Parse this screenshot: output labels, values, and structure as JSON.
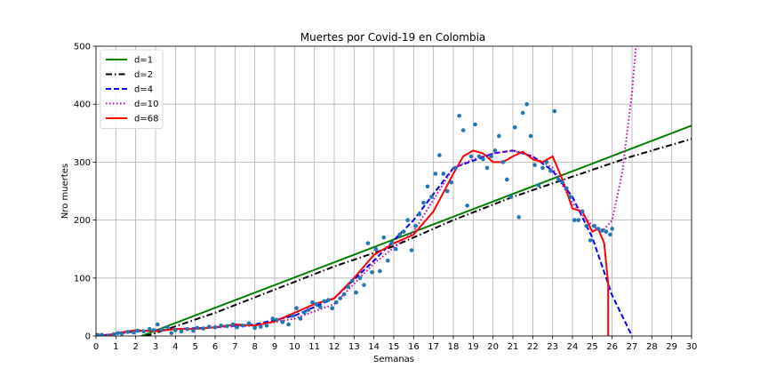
{
  "chart_data": {
    "type": "line",
    "title": "Muertes por Covid-19 en Colombia",
    "xlabel": "Semanas",
    "ylabel": "Nro muertes",
    "xlim": [
      0,
      30
    ],
    "ylim": [
      0,
      500
    ],
    "xticks": [
      0,
      1,
      2,
      3,
      4,
      5,
      6,
      7,
      8,
      9,
      10,
      11,
      12,
      13,
      14,
      15,
      16,
      17,
      18,
      19,
      20,
      21,
      22,
      23,
      24,
      25,
      26,
      27,
      28,
      29,
      30
    ],
    "yticks": [
      0,
      100,
      200,
      300,
      400,
      500
    ],
    "grid": true,
    "legend_position": "top-left",
    "scatter": {
      "color": "#1f77b4",
      "points": [
        [
          0.1,
          1
        ],
        [
          0.3,
          2
        ],
        [
          0.6,
          0
        ],
        [
          0.9,
          3
        ],
        [
          1.1,
          5
        ],
        [
          1.3,
          4
        ],
        [
          1.6,
          7
        ],
        [
          1.9,
          6
        ],
        [
          2.1,
          9
        ],
        [
          2.4,
          8
        ],
        [
          2.7,
          12
        ],
        [
          2.9,
          10
        ],
        [
          3.1,
          20
        ],
        [
          3.3,
          11
        ],
        [
          3.6,
          15
        ],
        [
          3.8,
          5
        ],
        [
          4.0,
          10
        ],
        [
          4.3,
          8
        ],
        [
          4.6,
          12
        ],
        [
          4.9,
          9
        ],
        [
          5.1,
          14
        ],
        [
          5.4,
          13
        ],
        [
          5.7,
          16
        ],
        [
          6.0,
          15
        ],
        [
          6.3,
          18
        ],
        [
          6.6,
          17
        ],
        [
          6.9,
          20
        ],
        [
          7.1,
          15
        ],
        [
          7.4,
          18
        ],
        [
          7.7,
          22
        ],
        [
          8.0,
          14
        ],
        [
          8.3,
          16
        ],
        [
          8.6,
          18
        ],
        [
          8.9,
          30
        ],
        [
          9.1,
          28
        ],
        [
          9.4,
          24
        ],
        [
          9.7,
          20
        ],
        [
          9.9,
          35
        ],
        [
          10.1,
          48
        ],
        [
          10.3,
          30
        ],
        [
          10.5,
          40
        ],
        [
          10.7,
          45
        ],
        [
          10.9,
          58
        ],
        [
          11.1,
          55
        ],
        [
          11.3,
          50
        ],
        [
          11.5,
          60
        ],
        [
          11.7,
          62
        ],
        [
          11.9,
          48
        ],
        [
          12.1,
          58
        ],
        [
          12.3,
          65
        ],
        [
          12.5,
          72
        ],
        [
          12.7,
          85
        ],
        [
          12.9,
          95
        ],
        [
          13.1,
          75
        ],
        [
          13.3,
          100
        ],
        [
          13.5,
          88
        ],
        [
          13.7,
          160
        ],
        [
          13.9,
          110
        ],
        [
          14.1,
          150
        ],
        [
          14.3,
          112
        ],
        [
          14.5,
          170
        ],
        [
          14.7,
          130
        ],
        [
          14.9,
          160
        ],
        [
          15.1,
          150
        ],
        [
          15.3,
          175
        ],
        [
          15.5,
          180
        ],
        [
          15.7,
          200
        ],
        [
          15.9,
          148
        ],
        [
          16.1,
          190
        ],
        [
          16.3,
          210
        ],
        [
          16.5,
          230
        ],
        [
          16.7,
          258
        ],
        [
          16.9,
          240
        ],
        [
          17.1,
          280
        ],
        [
          17.3,
          312
        ],
        [
          17.5,
          280
        ],
        [
          17.7,
          250
        ],
        [
          17.9,
          265
        ],
        [
          18.1,
          290
        ],
        [
          18.3,
          380
        ],
        [
          18.5,
          355
        ],
        [
          18.7,
          225
        ],
        [
          18.9,
          310
        ],
        [
          19.1,
          365
        ],
        [
          19.3,
          310
        ],
        [
          19.5,
          305
        ],
        [
          19.7,
          290
        ],
        [
          19.9,
          310
        ],
        [
          20.1,
          320
        ],
        [
          20.3,
          345
        ],
        [
          20.5,
          300
        ],
        [
          20.7,
          270
        ],
        [
          20.9,
          240
        ],
        [
          21.1,
          360
        ],
        [
          21.3,
          205
        ],
        [
          21.5,
          385
        ],
        [
          21.7,
          400
        ],
        [
          21.9,
          345
        ],
        [
          22.1,
          295
        ],
        [
          22.3,
          260
        ],
        [
          22.5,
          290
        ],
        [
          22.7,
          300
        ],
        [
          22.9,
          285
        ],
        [
          23.1,
          388
        ],
        [
          23.3,
          270
        ],
        [
          23.5,
          265
        ],
        [
          23.7,
          255
        ],
        [
          23.9,
          240
        ],
        [
          24.1,
          200
        ],
        [
          24.3,
          200
        ],
        [
          24.5,
          215
        ],
        [
          24.7,
          190
        ],
        [
          24.9,
          165
        ],
        [
          25.1,
          190
        ],
        [
          25.3,
          185
        ],
        [
          25.5,
          182
        ],
        [
          25.7,
          180
        ],
        [
          25.9,
          175
        ],
        [
          26.0,
          185
        ]
      ]
    },
    "series": [
      {
        "name": "d=1",
        "color": "#008000",
        "dash": "solid",
        "x": [
          0,
          30
        ],
        "y": [
          -30,
          363
        ]
      },
      {
        "name": "d=2",
        "color": "#000000",
        "dash": "dashdot",
        "x": [
          0,
          3,
          6,
          9,
          12,
          15,
          18,
          21,
          24,
          27,
          30
        ],
        "y": [
          -25,
          5,
          40,
          80,
          120,
          155,
          200,
          240,
          275,
          310,
          340
        ]
      },
      {
        "name": "d=4",
        "color": "#0000ff",
        "dash": "dashed",
        "x": [
          0,
          2,
          4,
          6,
          8,
          10,
          12,
          14,
          16,
          18,
          20,
          21,
          22,
          23,
          24,
          25,
          26,
          27
        ],
        "y": [
          0,
          8,
          12,
          15,
          20,
          35,
          65,
          130,
          200,
          290,
          315,
          320,
          310,
          285,
          240,
          170,
          70,
          0
        ]
      },
      {
        "name": "d=10",
        "color": "#bf00bf",
        "dash": "dotted",
        "x": [
          0,
          2,
          4,
          6,
          8,
          10,
          12,
          14,
          16,
          18,
          19,
          20,
          21,
          22,
          23,
          24,
          25,
          25.5,
          26,
          26.5,
          27,
          27.2
        ],
        "y": [
          0,
          8,
          12,
          15,
          18,
          30,
          55,
          125,
          180,
          290,
          305,
          315,
          320,
          310,
          290,
          230,
          190,
          180,
          200,
          280,
          420,
          500
        ]
      },
      {
        "name": "d=68",
        "color": "#ff0000",
        "dash": "solid",
        "x": [
          0,
          0.5,
          1,
          2,
          3,
          4,
          5,
          6,
          7,
          8,
          9,
          10,
          11,
          12,
          13,
          14,
          15,
          16,
          17,
          18,
          18.5,
          19,
          19.5,
          20,
          20.5,
          21,
          21.5,
          22,
          22.5,
          23,
          23.5,
          24,
          24.5,
          25,
          25.3,
          25.6,
          25.8,
          25.8
        ],
        "y": [
          4,
          0,
          5,
          10,
          8,
          12,
          12,
          15,
          20,
          18,
          25,
          40,
          55,
          65,
          100,
          140,
          160,
          175,
          215,
          280,
          310,
          320,
          315,
          300,
          300,
          310,
          318,
          305,
          300,
          310,
          270,
          220,
          215,
          180,
          185,
          160,
          90,
          0
        ]
      }
    ]
  }
}
